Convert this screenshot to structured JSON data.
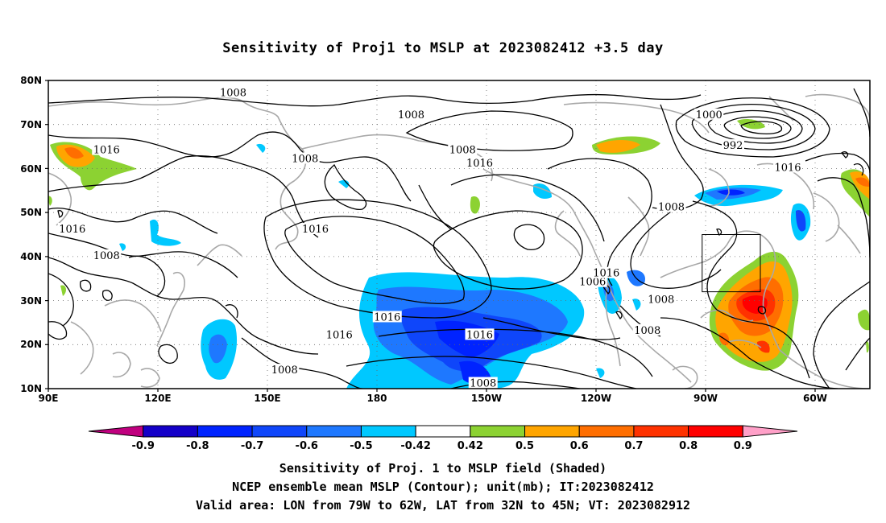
{
  "title": "Sensitivity of Proj1 to MSLP at 2023082412 +3.5 day",
  "map": {
    "lat_labels": [
      "80N",
      "70N",
      "60N",
      "50N",
      "40N",
      "30N",
      "20N",
      "10N"
    ],
    "lon_labels": [
      "90E",
      "120E",
      "150E",
      "180",
      "150W",
      "120W",
      "90W",
      "60W"
    ],
    "contour_labels": [
      {
        "text": "1008",
        "lon": 144,
        "lat": 77
      },
      {
        "text": "1008",
        "lon": 196,
        "lat": 72
      },
      {
        "text": "1016",
        "lon": 107,
        "lat": 64
      },
      {
        "text": "1008",
        "lon": 165,
        "lat": 62
      },
      {
        "text": "1008",
        "lon": 211,
        "lat": 64
      },
      {
        "text": "1016",
        "lon": 216,
        "lat": 61
      },
      {
        "text": "1000",
        "lon": 283,
        "lat": 72
      },
      {
        "text": "992",
        "lon": 290,
        "lat": 65
      },
      {
        "text": "1016",
        "lon": 306,
        "lat": 60
      },
      {
        "text": "1016",
        "lon": 97,
        "lat": 46
      },
      {
        "text": "1008",
        "lon": 107,
        "lat": 40
      },
      {
        "text": "1016",
        "lon": 168,
        "lat": 46
      },
      {
        "text": "1008",
        "lon": 272,
        "lat": 51
      },
      {
        "text": "1006",
        "lon": 249,
        "lat": 34
      },
      {
        "text": "1016",
        "lon": 253,
        "lat": 36
      },
      {
        "text": "1016",
        "lon": 189,
        "lat": 26
      },
      {
        "text": "1016",
        "lon": 175,
        "lat": 22
      },
      {
        "text": "1016",
        "lon": 216,
        "lat": 22
      },
      {
        "text": "1008",
        "lon": 269,
        "lat": 30
      },
      {
        "text": "1008",
        "lon": 265,
        "lat": 23
      },
      {
        "text": "1008",
        "lon": 159,
        "lat": 14
      },
      {
        "text": "1008",
        "lon": 217,
        "lat": 11
      }
    ],
    "valid_box": {
      "lon_min": 281,
      "lon_max": 298,
      "lat_min": 32,
      "lat_max": 45
    }
  },
  "colorbar": {
    "labels": [
      "-0.9",
      "-0.8",
      "-0.7",
      "-0.6",
      "-0.5",
      "-0.42",
      "0.42",
      "0.5",
      "0.6",
      "0.7",
      "0.8",
      "0.9"
    ],
    "colors": [
      "#c0007f",
      "#1400c8",
      "#0023ff",
      "#0f46fa",
      "#1e78ff",
      "#00c8ff",
      "#ffffff",
      "#8cd232",
      "#ffa500",
      "#ff6e00",
      "#ff3200",
      "#ff0000",
      "#ffa0c8"
    ]
  },
  "footer": {
    "line1": "Sensitivity of Proj. 1 to MSLP field (Shaded)",
    "line2": "NCEP ensemble mean MSLP (Contour); unit(mb); IT:2023082412",
    "line3": "Valid area: LON from 79W to 62W, LAT from 32N to 45N; VT: 2023082912"
  }
}
